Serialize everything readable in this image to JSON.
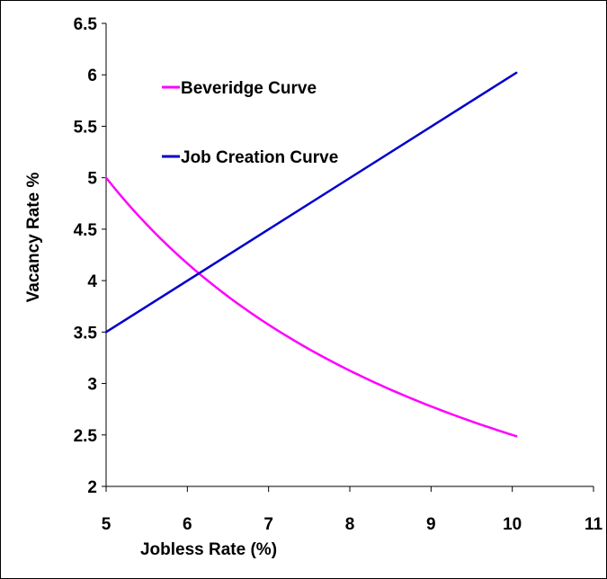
{
  "chart_data": {
    "type": "line",
    "xlabel": "Jobless Rate (%)",
    "ylabel": "Vacancy Rate %",
    "xlim": [
      5,
      11
    ],
    "ylim": [
      2,
      6.5
    ],
    "xticks": [
      "5",
      "6",
      "7",
      "8",
      "9",
      "10",
      "11"
    ],
    "yticks": [
      "2",
      "2.5",
      "3",
      "3.5",
      "4",
      "4.5",
      "5",
      "5.5",
      "6",
      "6.5"
    ],
    "grid": false,
    "legend_position": "top-left",
    "series": [
      {
        "name": "Beveridge Curve",
        "color": "#ff00ff",
        "x": [
          5.0,
          5.5,
          6.0,
          6.5,
          7.0,
          7.5,
          8.0,
          8.5,
          9.0,
          9.5,
          10.05
        ],
        "y": [
          5.0,
          4.55,
          4.17,
          3.85,
          3.57,
          3.33,
          3.13,
          2.94,
          2.78,
          2.63,
          2.49
        ]
      },
      {
        "name": "Job Creation Curve",
        "color": "#0000cc",
        "x": [
          5.0,
          10.05
        ],
        "y": [
          3.5,
          6.02
        ]
      }
    ]
  }
}
